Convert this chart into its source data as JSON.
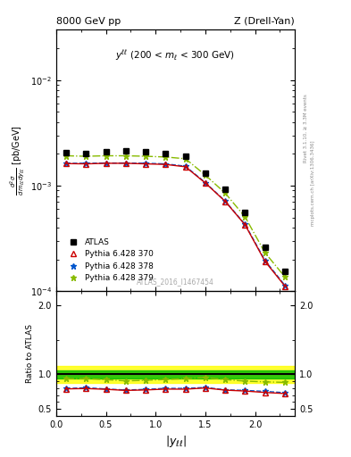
{
  "title_left": "8000 GeV pp",
  "title_right": "Z (Drell-Yan)",
  "watermark": "ATLAS_2016_I1467454",
  "right_label1": "Rivet 3.1.10, ≥ 3.3M events",
  "right_label2": "mcplots.cern.ch [arXiv:1306.3436]",
  "x_atlas": [
    0.1,
    0.3,
    0.5,
    0.7,
    0.9,
    1.1,
    1.3,
    1.5,
    1.7,
    1.9,
    2.1,
    2.3
  ],
  "y_atlas": [
    0.00205,
    0.00202,
    0.00208,
    0.00212,
    0.00208,
    0.00202,
    0.00192,
    0.00132,
    0.00092,
    0.00056,
    0.00026,
    0.000155
  ],
  "x_py370": [
    0.1,
    0.3,
    0.5,
    0.7,
    0.9,
    1.1,
    1.3,
    1.5,
    1.7,
    1.9,
    2.1,
    2.3
  ],
  "y_py370": [
    0.00162,
    0.00161,
    0.00163,
    0.00163,
    0.00161,
    0.00159,
    0.00151,
    0.00106,
    0.00071,
    0.000425,
    0.000192,
    0.000112
  ],
  "x_py378": [
    0.1,
    0.3,
    0.5,
    0.7,
    0.9,
    1.1,
    1.3,
    1.5,
    1.7,
    1.9,
    2.1,
    2.3
  ],
  "y_py378": [
    0.00163,
    0.00163,
    0.00164,
    0.00164,
    0.00163,
    0.00161,
    0.00153,
    0.00107,
    0.000715,
    0.00043,
    0.000196,
    0.000114
  ],
  "x_py379": [
    0.1,
    0.3,
    0.5,
    0.7,
    0.9,
    1.1,
    1.3,
    1.5,
    1.7,
    1.9,
    2.1,
    2.3
  ],
  "y_py379": [
    0.00192,
    0.0019,
    0.00192,
    0.00192,
    0.0019,
    0.00187,
    0.0018,
    0.00126,
    0.00085,
    0.000505,
    0.000232,
    0.000137
  ],
  "ratio_py370": [
    0.79,
    0.795,
    0.784,
    0.768,
    0.775,
    0.787,
    0.786,
    0.803,
    0.772,
    0.759,
    0.738,
    0.723
  ],
  "ratio_py378": [
    0.795,
    0.807,
    0.789,
    0.774,
    0.783,
    0.798,
    0.797,
    0.811,
    0.777,
    0.768,
    0.754,
    0.735
  ],
  "ratio_py379": [
    0.937,
    0.94,
    0.923,
    0.906,
    0.914,
    0.926,
    0.938,
    0.955,
    0.924,
    0.902,
    0.892,
    0.884
  ],
  "band_yellow_low": 0.88,
  "band_yellow_high": 1.12,
  "band_green_low": 0.94,
  "band_green_high": 1.06,
  "xlim": [
    0.0,
    2.4
  ],
  "ylim_main": [
    0.0001,
    0.03
  ],
  "ylim_ratio": [
    0.4,
    2.2
  ],
  "color_atlas": "#000000",
  "color_py370": "#cc0000",
  "color_py378": "#0055cc",
  "color_py379": "#88bb00",
  "color_band_yellow": "#ffff00",
  "color_band_green": "#00bb00",
  "xticks": [
    0.0,
    0.5,
    1.0,
    1.5,
    2.0
  ],
  "xtick_labels": [
    "0",
    "0.5",
    "1",
    "1.5",
    "2"
  ]
}
